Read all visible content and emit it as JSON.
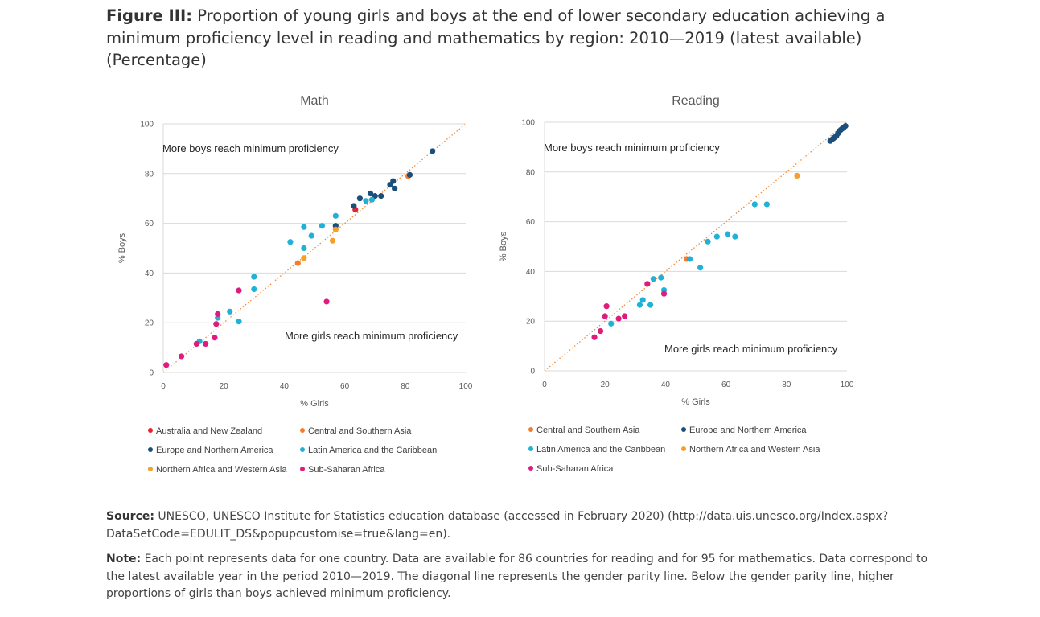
{
  "figure": {
    "label": "Figure III:",
    "title": "Proportion of young girls and boys at the end of lower secondary education achieving a minimum proficiency level in reading and mathematics by region: 2010—2019 (latest available) (Percentage)"
  },
  "colors": {
    "Australia and New Zealand": "#e8232f",
    "Central and Southern Asia": "#f47d2d",
    "Europe and Northern America": "#1b4f7a",
    "Latin America and the Caribbean": "#1fb2d6",
    "Northern Africa and Western Asia": "#f6a02b",
    "Sub-Saharan Africa": "#dd1c7e",
    "parity_line": "#f08a3a"
  },
  "chart_data": [
    {
      "type": "scatter",
      "title": "Math",
      "xlabel": "% Girls",
      "ylabel": "% Boys",
      "xlim": [
        0,
        100
      ],
      "ylim": [
        0,
        100
      ],
      "xticks": [
        "0",
        "20",
        "40",
        "60",
        "80",
        "100"
      ],
      "yticks": [
        "0",
        "20",
        "40",
        "60",
        "80",
        "100"
      ],
      "grid": "horizontal",
      "reference_line": "y = x (gender parity)",
      "annotation_upper": "More boys reach minimum proficiency",
      "annotation_lower": "More girls reach minimum proficiency",
      "legend_items": [
        "Australia and New Zealand",
        "Central and Southern Asia",
        "Europe and Northern America",
        "Latin America and the Caribbean",
        "Northern Africa and Western Asia",
        "Sub-Saharan Africa"
      ],
      "series": [
        {
          "name": "Australia and New Zealand",
          "points": [
            [
              63.5,
              65.5
            ]
          ]
        },
        {
          "name": "Central and Southern Asia",
          "points": [
            [
              44.5,
              44
            ],
            [
              81,
              79
            ]
          ]
        },
        {
          "name": "Europe and Northern America",
          "points": [
            [
              57,
              59
            ],
            [
              63,
              67
            ],
            [
              65,
              70
            ],
            [
              68.5,
              72
            ],
            [
              70,
              71
            ],
            [
              72,
              71
            ],
            [
              75,
              75.5
            ],
            [
              76,
              77
            ],
            [
              76.5,
              74
            ],
            [
              81.5,
              79.5
            ],
            [
              89,
              89
            ]
          ]
        },
        {
          "name": "Latin America and the Caribbean",
          "points": [
            [
              12,
              12.5
            ],
            [
              18,
              22
            ],
            [
              22,
              24.5
            ],
            [
              25,
              20.5
            ],
            [
              30,
              38.5
            ],
            [
              30,
              33.5
            ],
            [
              42,
              52.5
            ],
            [
              46.5,
              58.5
            ],
            [
              46.5,
              50
            ],
            [
              49,
              55
            ],
            [
              52.5,
              59
            ],
            [
              57,
              63
            ],
            [
              67,
              69
            ],
            [
              69,
              69.5
            ]
          ]
        },
        {
          "name": "Northern Africa and Western Asia",
          "points": [
            [
              46.5,
              46
            ],
            [
              56,
              53
            ],
            [
              57,
              57.5
            ]
          ]
        },
        {
          "name": "Sub-Saharan Africa",
          "points": [
            [
              1,
              3
            ],
            [
              6,
              6.5
            ],
            [
              11,
              11.5
            ],
            [
              14,
              11.5
            ],
            [
              17,
              14
            ],
            [
              17.5,
              19.5
            ],
            [
              18,
              23.5
            ],
            [
              25,
              33
            ],
            [
              54,
              28.5
            ]
          ]
        }
      ]
    },
    {
      "type": "scatter",
      "title": "Reading",
      "xlabel": "% Girls",
      "ylabel": "% Boys",
      "xlim": [
        0,
        100
      ],
      "ylim": [
        0,
        100
      ],
      "xticks": [
        "0",
        "20",
        "40",
        "60",
        "80",
        "100"
      ],
      "yticks": [
        "0",
        "20",
        "40",
        "60",
        "80",
        "100"
      ],
      "grid": "horizontal",
      "reference_line": "y = x (gender parity)",
      "annotation_upper": "More boys reach minimum proficiency",
      "annotation_lower": "More girls reach minimum proficiency",
      "legend_items": [
        "Central and Southern Asia",
        "Europe and Northern America",
        "Latin America and the Caribbean",
        "Northern Africa and Western Asia",
        "Sub-Saharan Africa"
      ],
      "series": [
        {
          "name": "Central and Southern Asia",
          "points": [
            [
              47,
              45
            ]
          ]
        },
        {
          "name": "Europe and Northern America",
          "points": [
            [
              94.5,
              92.5
            ],
            [
              95,
              93
            ],
            [
              95.5,
              93.5
            ],
            [
              96,
              94
            ],
            [
              96.5,
              94.5
            ],
            [
              97,
              95.5
            ],
            [
              97.5,
              96.5
            ],
            [
              98,
              97
            ],
            [
              98.5,
              97.5
            ],
            [
              99,
              98
            ],
            [
              99.5,
              98.5
            ]
          ]
        },
        {
          "name": "Latin America and the Caribbean",
          "points": [
            [
              22,
              19
            ],
            [
              31.5,
              26.5
            ],
            [
              32.5,
              28.5
            ],
            [
              35,
              26.5
            ],
            [
              36,
              37
            ],
            [
              38.5,
              37.5
            ],
            [
              39.5,
              32.5
            ],
            [
              48,
              45
            ],
            [
              51.5,
              41.5
            ],
            [
              54,
              52
            ],
            [
              57,
              54
            ],
            [
              60.5,
              55
            ],
            [
              63,
              54
            ],
            [
              69.5,
              67
            ],
            [
              73.5,
              67
            ]
          ]
        },
        {
          "name": "Northern Africa and Western Asia",
          "points": [
            [
              83.5,
              78.5
            ]
          ]
        },
        {
          "name": "Sub-Saharan Africa",
          "points": [
            [
              16.5,
              13.5
            ],
            [
              18.5,
              16
            ],
            [
              20,
              22
            ],
            [
              20.5,
              26
            ],
            [
              24.5,
              21
            ],
            [
              26.5,
              22
            ],
            [
              34,
              35
            ],
            [
              39.5,
              31
            ]
          ]
        }
      ]
    }
  ],
  "source": {
    "label": "Source:",
    "text": "UNESCO, UNESCO Institute for Statistics education database (accessed in February 2020) (http://data.uis.unesco.org/Index.aspx? DataSetCode=EDULIT_DS&popupcustomise=true&lang=en)."
  },
  "note": {
    "label": "Note:",
    "text": "Each point represents data for one country. Data are available for 86 countries for reading and for 95 for mathematics. Data correspond to the latest available year in the period 2010—2019. The diagonal line represents the gender parity line. Below the gender parity line, higher proportions of girls than boys achieved minimum proficiency."
  }
}
